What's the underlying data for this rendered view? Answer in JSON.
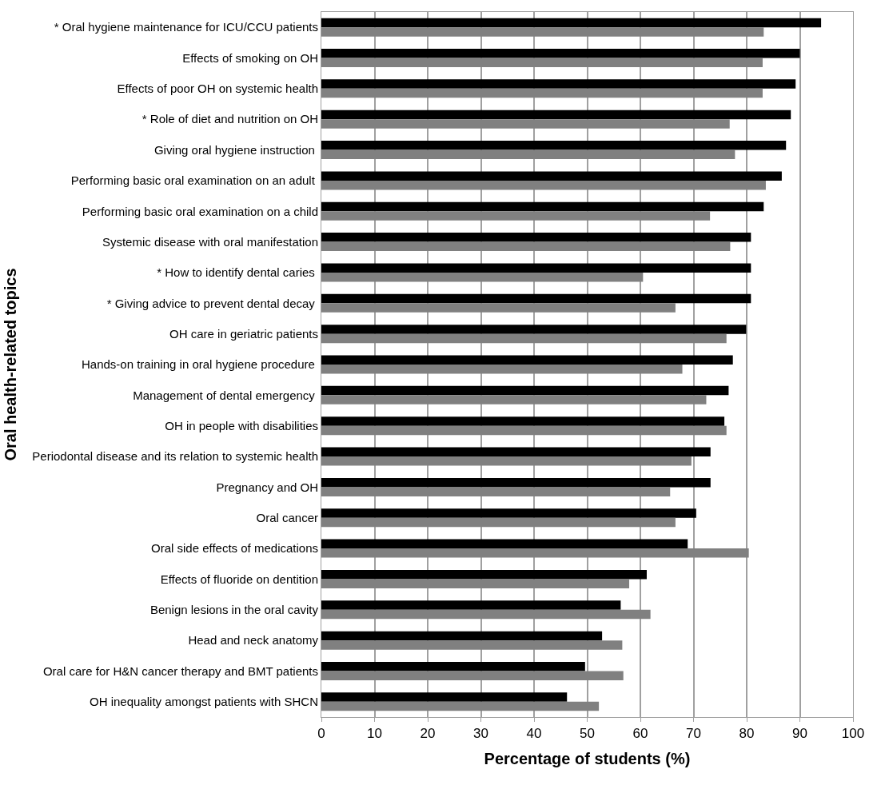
{
  "chart_data": {
    "type": "bar",
    "orientation": "horizontal",
    "xlabel": "Percentage of students (%)",
    "ylabel": "Oral health-related topics",
    "categories": [
      "* Oral hygiene maintenance for ICU/CCU patients",
      "Effects of smoking on OH",
      "Effects of poor OH on systemic health",
      "* Role of diet and nutrition on OH",
      "Giving oral hygiene instruction ",
      "Performing basic oral examination on an adult ",
      "Performing basic oral examination on a child",
      "Systemic disease with oral manifestation",
      "* How to identify dental caries ",
      "* Giving advice to prevent dental decay ",
      "OH care in geriatric patients",
      "Hands-on training in oral hygiene procedure ",
      "Management of dental emergency ",
      "OH in people with disabilities",
      "Periodontal disease and its relation to systemic health",
      "Pregnancy and OH",
      "Oral cancer",
      "Oral side effects of medications",
      "Effects of fluoride on dentition",
      "Benign lesions in the oral cavity",
      "Head and neck anatomy",
      "Oral care for H&N cancer therapy and BMT patients",
      "OH inequality amongst patients with SHCN"
    ],
    "series": [
      {
        "color": "#000000",
        "values": [
          94,
          90,
          89.2,
          88.3,
          87.4,
          86.6,
          83.2,
          80.8,
          80.8,
          80.8,
          79.9,
          77.4,
          76.6,
          75.8,
          73.2,
          73.2,
          70.5,
          68.9,
          61.2,
          56.3,
          52.8,
          49.6,
          46.2
        ]
      },
      {
        "color": "#808080",
        "values": [
          83.2,
          83,
          83,
          76.8,
          77.8,
          83.6,
          73.1,
          76.9,
          60.5,
          66.6,
          76.2,
          67.9,
          72.4,
          76.2,
          69.6,
          65.6,
          66.6,
          80.4,
          57.9,
          61.9,
          56.6,
          56.8,
          52.2
        ]
      }
    ],
    "xlim": [
      0,
      100
    ],
    "xticks": [
      0,
      10,
      20,
      30,
      40,
      50,
      60,
      70,
      80,
      90,
      100
    ],
    "grid": "x",
    "legend": false
  }
}
